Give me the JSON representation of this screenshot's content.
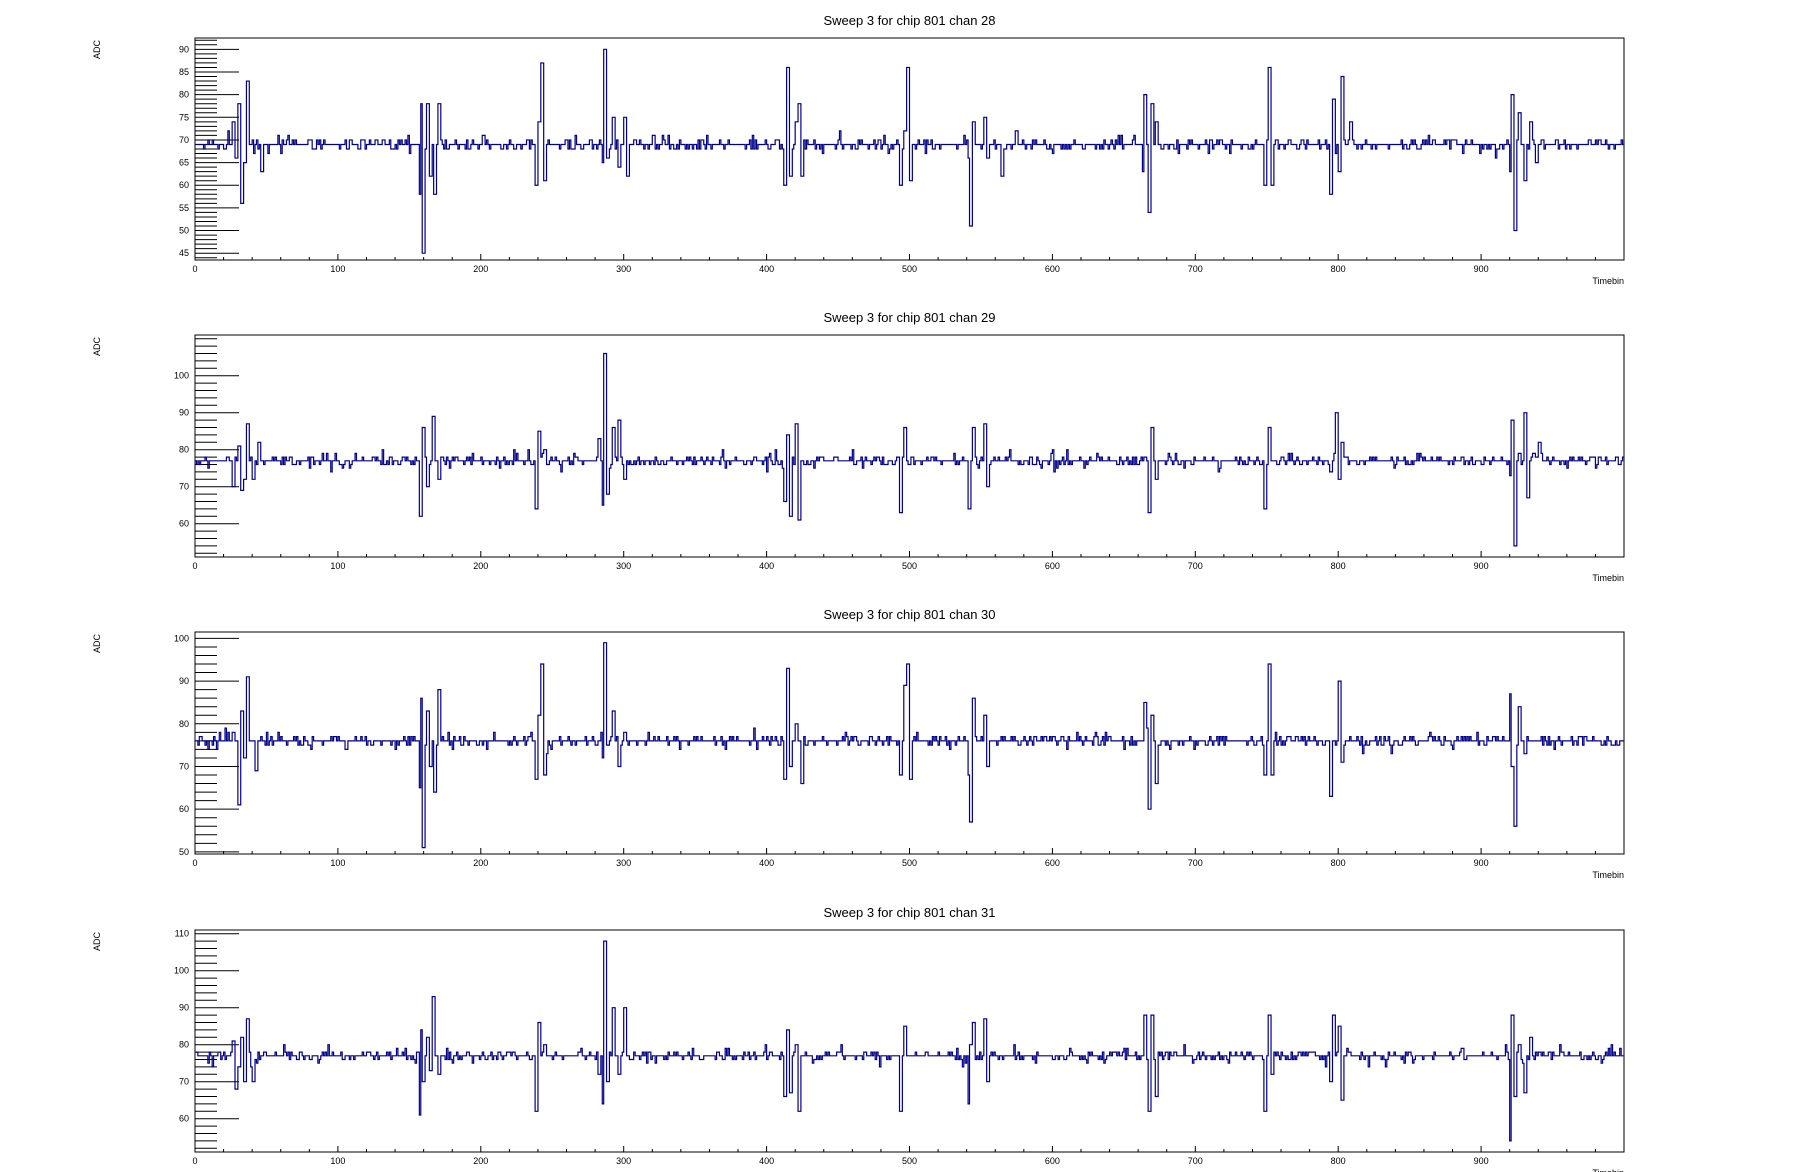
{
  "chart_data": [
    {
      "type": "line",
      "title": "Sweep 3 for chip 801 chan 28",
      "xlabel": "Timebin",
      "ylabel": "ADC",
      "xlim": [
        0,
        1000
      ],
      "ylim": [
        43.5,
        92.5
      ],
      "xticks": [
        0,
        100,
        200,
        300,
        400,
        500,
        600,
        700,
        800,
        900
      ],
      "yticks": [
        45,
        50,
        55,
        60,
        65,
        70,
        75,
        80,
        85,
        90
      ],
      "baseline": 69,
      "series_color": "#00008b",
      "spikes": [
        [
          26,
          74
        ],
        [
          28,
          66
        ],
        [
          30,
          78
        ],
        [
          32,
          56
        ],
        [
          34,
          65
        ],
        [
          36,
          83
        ],
        [
          46,
          63
        ],
        [
          157,
          58
        ],
        [
          158,
          78
        ],
        [
          159,
          45
        ],
        [
          162,
          78
        ],
        [
          164,
          62
        ],
        [
          167,
          58
        ],
        [
          170,
          78
        ],
        [
          238,
          60
        ],
        [
          240,
          74
        ],
        [
          242,
          87
        ],
        [
          244,
          61
        ],
        [
          285,
          65
        ],
        [
          286,
          90
        ],
        [
          288,
          66
        ],
        [
          292,
          75
        ],
        [
          296,
          64
        ],
        [
          300,
          75
        ],
        [
          302,
          62
        ],
        [
          412,
          60
        ],
        [
          414,
          86
        ],
        [
          416,
          62
        ],
        [
          420,
          74
        ],
        [
          422,
          78
        ],
        [
          424,
          62
        ],
        [
          493,
          60
        ],
        [
          496,
          72
        ],
        [
          498,
          86
        ],
        [
          500,
          61
        ],
        [
          541,
          66
        ],
        [
          542,
          51
        ],
        [
          544,
          74
        ],
        [
          552,
          75
        ],
        [
          554,
          66
        ],
        [
          564,
          62
        ],
        [
          574,
          72
        ],
        [
          663,
          63
        ],
        [
          664,
          80
        ],
        [
          667,
          54
        ],
        [
          669,
          78
        ],
        [
          672,
          74
        ],
        [
          748,
          60
        ],
        [
          751,
          86
        ],
        [
          753,
          60
        ],
        [
          794,
          58
        ],
        [
          796,
          79
        ],
        [
          800,
          63
        ],
        [
          802,
          84
        ],
        [
          808,
          74
        ],
        [
          920,
          63
        ],
        [
          921,
          80
        ],
        [
          923,
          50
        ],
        [
          926,
          76
        ],
        [
          930,
          61
        ],
        [
          934,
          74
        ],
        [
          938,
          65
        ]
      ]
    },
    {
      "type": "line",
      "title": "Sweep 3 for chip 801 chan 29",
      "xlabel": "Timebin",
      "ylabel": "ADC",
      "xlim": [
        0,
        1000
      ],
      "ylim": [
        51,
        111
      ],
      "xticks": [
        0,
        100,
        200,
        300,
        400,
        500,
        600,
        700,
        800,
        900
      ],
      "yticks": [
        60,
        70,
        80,
        90,
        100
      ],
      "baseline": 77,
      "series_color": "#00008b",
      "spikes": [
        [
          26,
          70
        ],
        [
          30,
          81
        ],
        [
          32,
          69
        ],
        [
          34,
          72
        ],
        [
          36,
          87
        ],
        [
          40,
          72
        ],
        [
          44,
          82
        ],
        [
          157,
          62
        ],
        [
          159,
          86
        ],
        [
          162,
          70
        ],
        [
          166,
          89
        ],
        [
          170,
          72
        ],
        [
          238,
          64
        ],
        [
          240,
          85
        ],
        [
          244,
          80
        ],
        [
          282,
          83
        ],
        [
          285,
          65
        ],
        [
          286,
          106
        ],
        [
          288,
          68
        ],
        [
          292,
          86
        ],
        [
          296,
          88
        ],
        [
          300,
          72
        ],
        [
          412,
          66
        ],
        [
          414,
          84
        ],
        [
          416,
          62
        ],
        [
          420,
          87
        ],
        [
          422,
          61
        ],
        [
          493,
          63
        ],
        [
          496,
          86
        ],
        [
          541,
          64
        ],
        [
          544,
          86
        ],
        [
          552,
          87
        ],
        [
          554,
          70
        ],
        [
          664,
          78
        ],
        [
          667,
          63
        ],
        [
          669,
          86
        ],
        [
          672,
          72
        ],
        [
          748,
          64
        ],
        [
          751,
          86
        ],
        [
          794,
          74
        ],
        [
          798,
          90
        ],
        [
          800,
          72
        ],
        [
          802,
          82
        ],
        [
          920,
          73
        ],
        [
          921,
          88
        ],
        [
          923,
          54
        ],
        [
          926,
          79
        ],
        [
          930,
          90
        ],
        [
          932,
          67
        ],
        [
          936,
          79
        ],
        [
          940,
          82
        ]
      ]
    },
    {
      "type": "line",
      "title": "Sweep 3 for chip 801 chan 30",
      "xlabel": "Timebin",
      "ylabel": "ADC",
      "xlim": [
        0,
        1000
      ],
      "ylim": [
        49.5,
        101.5
      ],
      "xticks": [
        0,
        100,
        200,
        300,
        400,
        500,
        600,
        700,
        800,
        900
      ],
      "yticks": [
        50,
        60,
        70,
        80,
        90,
        100
      ],
      "baseline": 76,
      "series_color": "#00008b",
      "spikes": [
        [
          26,
          78
        ],
        [
          30,
          61
        ],
        [
          32,
          83
        ],
        [
          34,
          72
        ],
        [
          36,
          91
        ],
        [
          42,
          69
        ],
        [
          157,
          65
        ],
        [
          158,
          86
        ],
        [
          159,
          51
        ],
        [
          162,
          83
        ],
        [
          164,
          70
        ],
        [
          167,
          64
        ],
        [
          170,
          88
        ],
        [
          238,
          67
        ],
        [
          240,
          82
        ],
        [
          242,
          94
        ],
        [
          244,
          68
        ],
        [
          285,
          72
        ],
        [
          286,
          99
        ],
        [
          288,
          75
        ],
        [
          292,
          83
        ],
        [
          296,
          70
        ],
        [
          300,
          78
        ],
        [
          412,
          67
        ],
        [
          414,
          93
        ],
        [
          416,
          70
        ],
        [
          420,
          80
        ],
        [
          424,
          66
        ],
        [
          493,
          68
        ],
        [
          496,
          89
        ],
        [
          498,
          94
        ],
        [
          500,
          67
        ],
        [
          541,
          68
        ],
        [
          542,
          57
        ],
        [
          544,
          86
        ],
        [
          552,
          82
        ],
        [
          554,
          70
        ],
        [
          664,
          85
        ],
        [
          667,
          60
        ],
        [
          669,
          82
        ],
        [
          672,
          66
        ],
        [
          748,
          68
        ],
        [
          751,
          94
        ],
        [
          753,
          68
        ],
        [
          794,
          63
        ],
        [
          796,
          76
        ],
        [
          800,
          90
        ],
        [
          802,
          71
        ],
        [
          920,
          87
        ],
        [
          921,
          70
        ],
        [
          923,
          56
        ],
        [
          926,
          84
        ],
        [
          930,
          73
        ]
      ]
    },
    {
      "type": "line",
      "title": "Sweep 3 for chip 801 chan 31",
      "xlabel": "Timebin",
      "ylabel": "ADC",
      "xlim": [
        0,
        1000
      ],
      "ylim": [
        51,
        111
      ],
      "xticks": [
        0,
        100,
        200,
        300,
        400,
        500,
        600,
        700,
        800,
        900
      ],
      "yticks": [
        60,
        70,
        80,
        90,
        100,
        110
      ],
      "baseline": 77,
      "series_color": "#00008b",
      "spikes": [
        [
          26,
          81
        ],
        [
          28,
          68
        ],
        [
          30,
          74
        ],
        [
          32,
          82
        ],
        [
          34,
          70
        ],
        [
          36,
          87
        ],
        [
          40,
          70
        ],
        [
          157,
          61
        ],
        [
          158,
          84
        ],
        [
          159,
          70
        ],
        [
          162,
          82
        ],
        [
          164,
          73
        ],
        [
          166,
          93
        ],
        [
          170,
          72
        ],
        [
          238,
          62
        ],
        [
          240,
          86
        ],
        [
          244,
          80
        ],
        [
          282,
          72
        ],
        [
          285,
          64
        ],
        [
          286,
          108
        ],
        [
          288,
          70
        ],
        [
          292,
          90
        ],
        [
          296,
          72
        ],
        [
          300,
          90
        ],
        [
          412,
          66
        ],
        [
          414,
          84
        ],
        [
          416,
          67
        ],
        [
          420,
          80
        ],
        [
          422,
          62
        ],
        [
          493,
          62
        ],
        [
          496,
          85
        ],
        [
          541,
          64
        ],
        [
          542,
          80
        ],
        [
          544,
          86
        ],
        [
          552,
          87
        ],
        [
          554,
          70
        ],
        [
          664,
          88
        ],
        [
          667,
          62
        ],
        [
          669,
          88
        ],
        [
          672,
          66
        ],
        [
          748,
          62
        ],
        [
          751,
          88
        ],
        [
          753,
          72
        ],
        [
          794,
          70
        ],
        [
          796,
          88
        ],
        [
          800,
          85
        ],
        [
          802,
          65
        ],
        [
          920,
          54
        ],
        [
          921,
          88
        ],
        [
          923,
          66
        ],
        [
          926,
          80
        ],
        [
          930,
          67
        ],
        [
          934,
          82
        ]
      ]
    }
  ]
}
